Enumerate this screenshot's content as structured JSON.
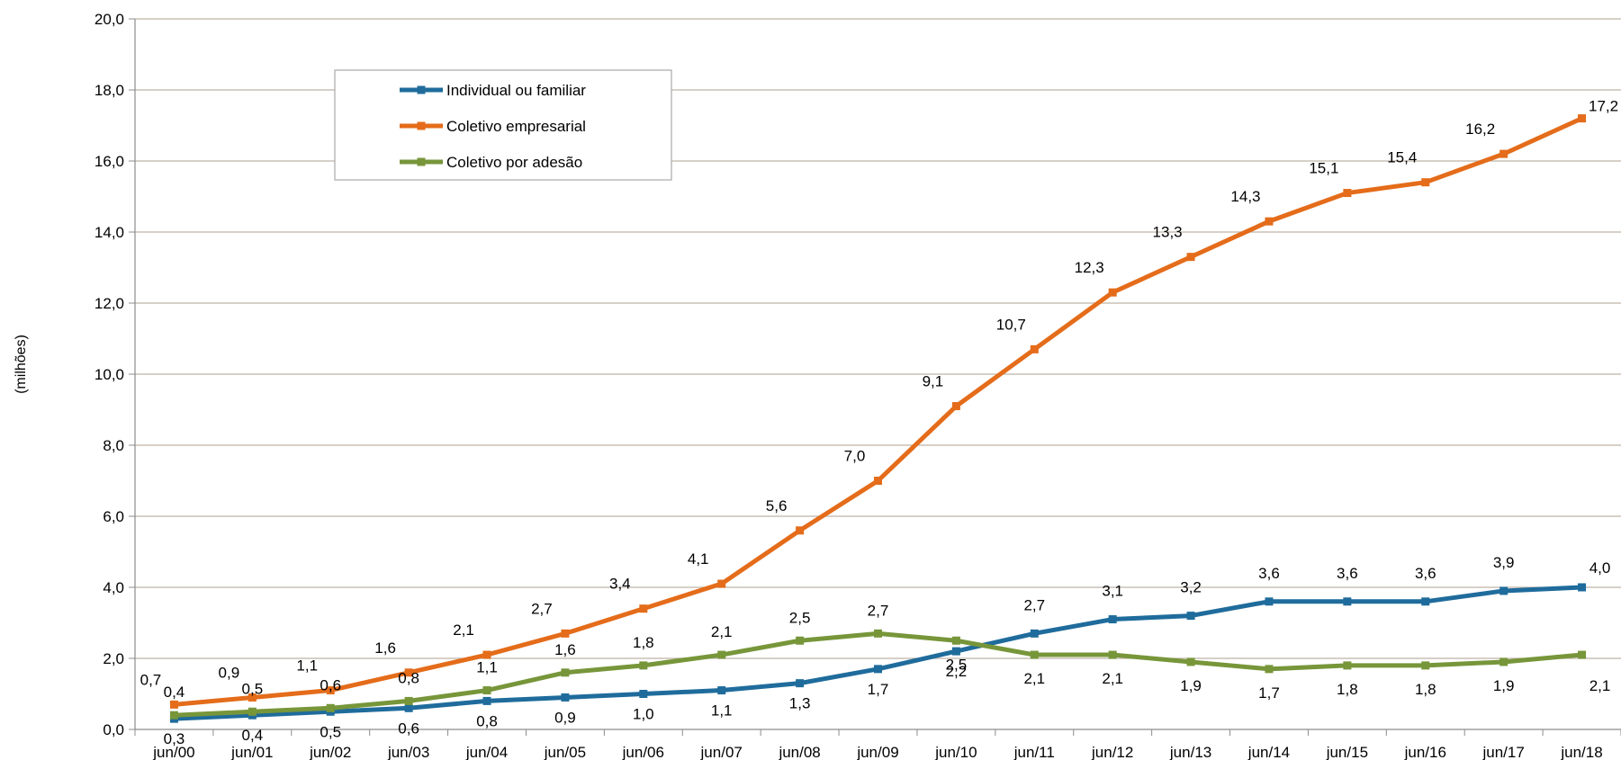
{
  "chart_data": {
    "type": "line",
    "ylabel": "(milhões)",
    "ylim": [
      0,
      20
    ],
    "yticks": [
      "0,0",
      "2,0",
      "4,0",
      "6,0",
      "8,0",
      "10,0",
      "12,0",
      "14,0",
      "16,0",
      "18,0",
      "20,0"
    ],
    "grid": true,
    "legend_position": "top-left",
    "categories": [
      "jun/00",
      "jun/01",
      "jun/02",
      "jun/03",
      "jun/04",
      "jun/05",
      "jun/06",
      "jun/07",
      "jun/08",
      "jun/09",
      "jun/10",
      "jun/11",
      "jun/12",
      "jun/13",
      "jun/14",
      "jun/15",
      "jun/16",
      "jun/17",
      "jun/18"
    ],
    "series": [
      {
        "name": "Individual ou familiar",
        "color": "#1F6C9C",
        "values": [
          0.3,
          0.4,
          0.5,
          0.6,
          0.8,
          0.9,
          1.0,
          1.1,
          1.3,
          1.7,
          2.2,
          2.7,
          3.1,
          3.2,
          3.6,
          3.6,
          3.6,
          3.9,
          4.0
        ],
        "labels": [
          "0,3",
          "0,4",
          "0,5",
          "0,6",
          "0,8",
          "0,9",
          "1,0",
          "1,1",
          "1,3",
          "1,7",
          "2,2",
          "2,7",
          "3,1",
          "3,2",
          "3,6",
          "3,6",
          "3,6",
          "3,9",
          "4,0"
        ]
      },
      {
        "name": "Coletivo empresarial",
        "color": "#E46C1A",
        "values": [
          0.7,
          0.9,
          1.1,
          1.6,
          2.1,
          2.7,
          3.4,
          4.1,
          5.6,
          7.0,
          9.1,
          10.7,
          12.3,
          13.3,
          14.3,
          15.1,
          15.4,
          16.2,
          17.2
        ],
        "labels": [
          "0,7",
          "0,9",
          "1,1",
          "1,6",
          "2,1",
          "2,7",
          "3,4",
          "4,1",
          "5,6",
          "7,0",
          "9,1",
          "10,7",
          "12,3",
          "13,3",
          "14,3",
          "15,1",
          "15,4",
          "16,2",
          "17,2"
        ]
      },
      {
        "name": "Coletivo por adesão",
        "color": "#77963A",
        "values": [
          0.4,
          0.5,
          0.6,
          0.8,
          1.1,
          1.6,
          1.8,
          2.1,
          2.5,
          2.7,
          2.5,
          2.1,
          2.1,
          1.9,
          1.7,
          1.8,
          1.8,
          1.9,
          2.1
        ],
        "labels": [
          "0,4",
          "0,5",
          "0,6",
          "0,8",
          "1,1",
          "1,6",
          "1,8",
          "2,1",
          "2,5",
          "2,7",
          "2,5",
          "2,1",
          "2,1",
          "1,9",
          "1,7",
          "1,8",
          "1,8",
          "1,9",
          "2,1"
        ]
      }
    ]
  }
}
